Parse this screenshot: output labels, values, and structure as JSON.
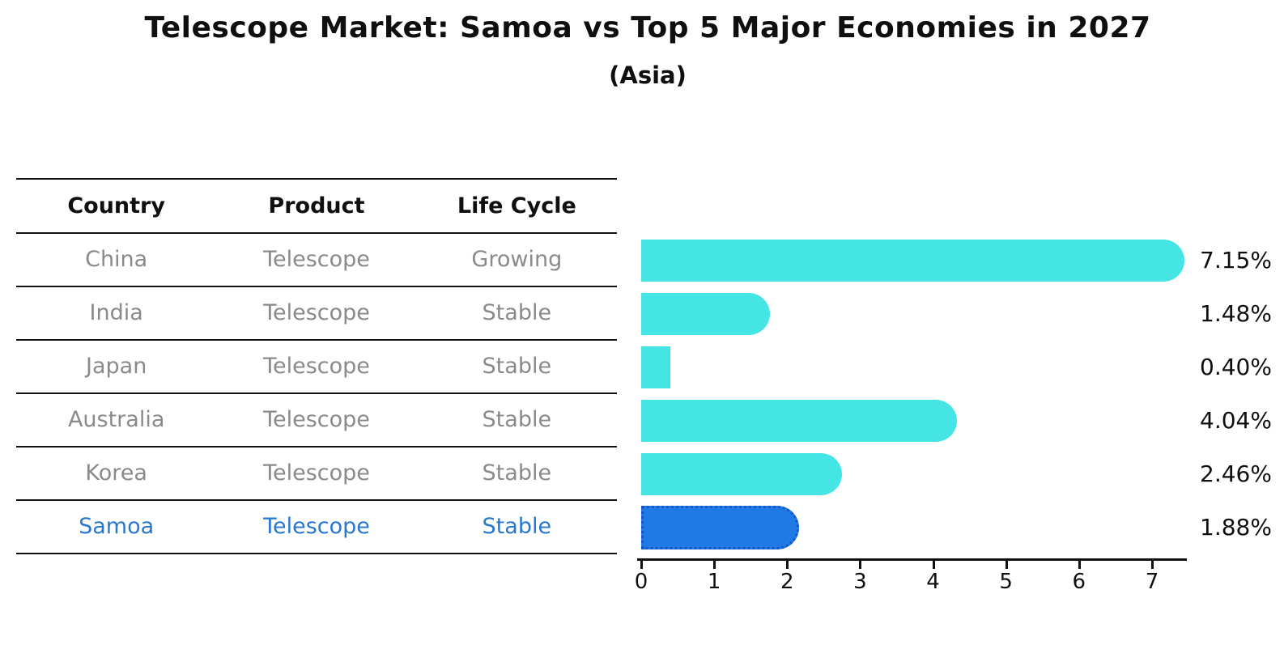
{
  "title": "Telescope Market: Samoa vs Top 5 Major Economies in 2027",
  "subtitle": "(Asia)",
  "table": {
    "headers": [
      "Country",
      "Product",
      "Life Cycle"
    ],
    "rows": [
      {
        "country": "China",
        "product": "Telescope",
        "life_cycle": "Growing"
      },
      {
        "country": "India",
        "product": "Telescope",
        "life_cycle": "Stable"
      },
      {
        "country": "Japan",
        "product": "Telescope",
        "life_cycle": "Stable"
      },
      {
        "country": "Australia",
        "product": "Telescope",
        "life_cycle": "Stable"
      },
      {
        "country": "Korea",
        "product": "Telescope",
        "life_cycle": "Stable"
      },
      {
        "country": "Samoa",
        "product": "Telescope",
        "life_cycle": "Stable"
      }
    ],
    "highlighted_row": "Samoa"
  },
  "chart_data": {
    "type": "bar",
    "orientation": "horizontal",
    "title": "Telescope Market: Samoa vs Top 5 Major Economies in 2027",
    "subtitle": "(Asia)",
    "categories": [
      "China",
      "India",
      "Japan",
      "Australia",
      "Korea",
      "Samoa"
    ],
    "values": [
      7.15,
      1.48,
      0.4,
      4.04,
      2.46,
      1.88
    ],
    "value_labels": [
      "7.15%",
      "1.48%",
      "0.40%",
      "4.04%",
      "2.46%",
      "1.88%"
    ],
    "x_ticks": [
      "0",
      "1",
      "2",
      "3",
      "4",
      "5",
      "6",
      "7"
    ],
    "xlim": [
      0,
      7.45
    ],
    "grid": false,
    "legend": false,
    "highlight_index": 5,
    "colors": {
      "bar": "#46e5e5",
      "highlight_bar": "#207ae6",
      "highlight_border": "#1556c8",
      "highlight_text": "#2878d0",
      "table_text": "#8a8a8a",
      "axis": "#111111"
    }
  }
}
